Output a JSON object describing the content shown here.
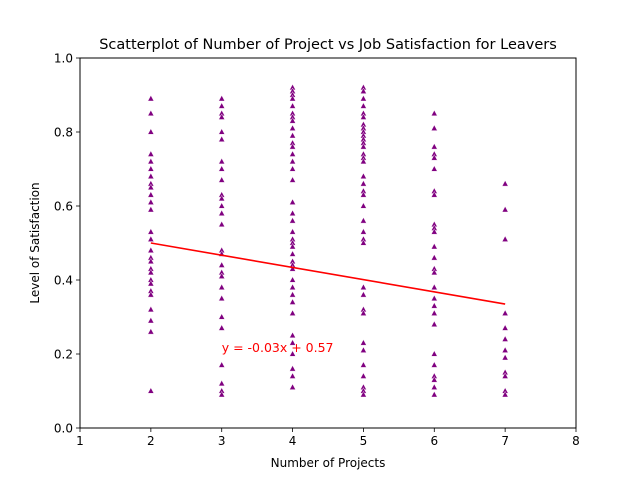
{
  "chart_data": {
    "type": "scatter",
    "title": "Scatterplot of Number of Project vs Job Satisfaction for Leavers",
    "xlabel": "Number of Projects",
    "ylabel": "Level of Satisfaction",
    "xlim": [
      1,
      8
    ],
    "ylim": [
      0.0,
      1.0
    ],
    "xticks": [
      "1",
      "2",
      "3",
      "4",
      "5",
      "6",
      "7",
      "8"
    ],
    "yticks": [
      "0.0",
      "0.2",
      "0.4",
      "0.6",
      "0.8",
      "1.0"
    ],
    "grid": false,
    "colors": {
      "points": "#800080",
      "trendline": "#ff0000"
    },
    "series": [
      {
        "points": [
          [
            2,
            0.89
          ],
          [
            2,
            0.85
          ],
          [
            2,
            0.8
          ],
          [
            2,
            0.74
          ],
          [
            2,
            0.72
          ],
          [
            2,
            0.7
          ],
          [
            2,
            0.68
          ],
          [
            2,
            0.66
          ],
          [
            2,
            0.65
          ],
          [
            2,
            0.63
          ],
          [
            2,
            0.61
          ],
          [
            2,
            0.59
          ],
          [
            2,
            0.53
          ],
          [
            2,
            0.51
          ],
          [
            2,
            0.48
          ],
          [
            2,
            0.46
          ],
          [
            2,
            0.45
          ],
          [
            2,
            0.43
          ],
          [
            2,
            0.42
          ],
          [
            2,
            0.4
          ],
          [
            2,
            0.39
          ],
          [
            2,
            0.37
          ],
          [
            2,
            0.36
          ],
          [
            2,
            0.32
          ],
          [
            2,
            0.29
          ],
          [
            2,
            0.26
          ],
          [
            2,
            0.1
          ],
          [
            3,
            0.89
          ],
          [
            3,
            0.87
          ],
          [
            3,
            0.85
          ],
          [
            3,
            0.84
          ],
          [
            3,
            0.8
          ],
          [
            3,
            0.78
          ],
          [
            3,
            0.72
          ],
          [
            3,
            0.7
          ],
          [
            3,
            0.67
          ],
          [
            3,
            0.63
          ],
          [
            3,
            0.62
          ],
          [
            3,
            0.6
          ],
          [
            3,
            0.58
          ],
          [
            3,
            0.55
          ],
          [
            3,
            0.48
          ],
          [
            3,
            0.47
          ],
          [
            3,
            0.44
          ],
          [
            3,
            0.42
          ],
          [
            3,
            0.41
          ],
          [
            3,
            0.38
          ],
          [
            3,
            0.35
          ],
          [
            3,
            0.3
          ],
          [
            3,
            0.27
          ],
          [
            3,
            0.17
          ],
          [
            3,
            0.12
          ],
          [
            3,
            0.1
          ],
          [
            3,
            0.09
          ],
          [
            4,
            0.92
          ],
          [
            4,
            0.91
          ],
          [
            4,
            0.9
          ],
          [
            4,
            0.89
          ],
          [
            4,
            0.87
          ],
          [
            4,
            0.85
          ],
          [
            4,
            0.84
          ],
          [
            4,
            0.83
          ],
          [
            4,
            0.81
          ],
          [
            4,
            0.79
          ],
          [
            4,
            0.77
          ],
          [
            4,
            0.76
          ],
          [
            4,
            0.74
          ],
          [
            4,
            0.72
          ],
          [
            4,
            0.7
          ],
          [
            4,
            0.67
          ],
          [
            4,
            0.61
          ],
          [
            4,
            0.58
          ],
          [
            4,
            0.56
          ],
          [
            4,
            0.53
          ],
          [
            4,
            0.51
          ],
          [
            4,
            0.5
          ],
          [
            4,
            0.49
          ],
          [
            4,
            0.47
          ],
          [
            4,
            0.45
          ],
          [
            4,
            0.44
          ],
          [
            4,
            0.43
          ],
          [
            4,
            0.4
          ],
          [
            4,
            0.38
          ],
          [
            4,
            0.36
          ],
          [
            4,
            0.34
          ],
          [
            4,
            0.31
          ],
          [
            4,
            0.25
          ],
          [
            4,
            0.23
          ],
          [
            4,
            0.2
          ],
          [
            4,
            0.16
          ],
          [
            4,
            0.14
          ],
          [
            4,
            0.11
          ],
          [
            5,
            0.92
          ],
          [
            5,
            0.91
          ],
          [
            5,
            0.89
          ],
          [
            5,
            0.87
          ],
          [
            5,
            0.85
          ],
          [
            5,
            0.84
          ],
          [
            5,
            0.82
          ],
          [
            5,
            0.81
          ],
          [
            5,
            0.8
          ],
          [
            5,
            0.79
          ],
          [
            5,
            0.78
          ],
          [
            5,
            0.77
          ],
          [
            5,
            0.76
          ],
          [
            5,
            0.74
          ],
          [
            5,
            0.73
          ],
          [
            5,
            0.72
          ],
          [
            5,
            0.68
          ],
          [
            5,
            0.66
          ],
          [
            5,
            0.64
          ],
          [
            5,
            0.63
          ],
          [
            5,
            0.6
          ],
          [
            5,
            0.56
          ],
          [
            5,
            0.53
          ],
          [
            5,
            0.51
          ],
          [
            5,
            0.5
          ],
          [
            5,
            0.38
          ],
          [
            5,
            0.36
          ],
          [
            5,
            0.32
          ],
          [
            5,
            0.31
          ],
          [
            5,
            0.23
          ],
          [
            5,
            0.21
          ],
          [
            5,
            0.17
          ],
          [
            5,
            0.14
          ],
          [
            5,
            0.11
          ],
          [
            5,
            0.1
          ],
          [
            5,
            0.09
          ],
          [
            6,
            0.85
          ],
          [
            6,
            0.81
          ],
          [
            6,
            0.76
          ],
          [
            6,
            0.74
          ],
          [
            6,
            0.73
          ],
          [
            6,
            0.7
          ],
          [
            6,
            0.64
          ],
          [
            6,
            0.63
          ],
          [
            6,
            0.55
          ],
          [
            6,
            0.54
          ],
          [
            6,
            0.53
          ],
          [
            6,
            0.49
          ],
          [
            6,
            0.46
          ],
          [
            6,
            0.43
          ],
          [
            6,
            0.42
          ],
          [
            6,
            0.38
          ],
          [
            6,
            0.35
          ],
          [
            6,
            0.33
          ],
          [
            6,
            0.31
          ],
          [
            6,
            0.28
          ],
          [
            6,
            0.2
          ],
          [
            6,
            0.17
          ],
          [
            6,
            0.14
          ],
          [
            6,
            0.13
          ],
          [
            6,
            0.11
          ],
          [
            6,
            0.09
          ],
          [
            7,
            0.66
          ],
          [
            7,
            0.59
          ],
          [
            7,
            0.51
          ],
          [
            7,
            0.31
          ],
          [
            7,
            0.27
          ],
          [
            7,
            0.24
          ],
          [
            7,
            0.21
          ],
          [
            7,
            0.19
          ],
          [
            7,
            0.15
          ],
          [
            7,
            0.14
          ],
          [
            7,
            0.1
          ],
          [
            7,
            0.09
          ]
        ]
      }
    ],
    "trendline": {
      "x_range": [
        2,
        7
      ],
      "slope": -0.033,
      "intercept": 0.566,
      "label": "y = -0.03x + 0.57",
      "label_at": [
        3,
        0.205
      ]
    }
  }
}
